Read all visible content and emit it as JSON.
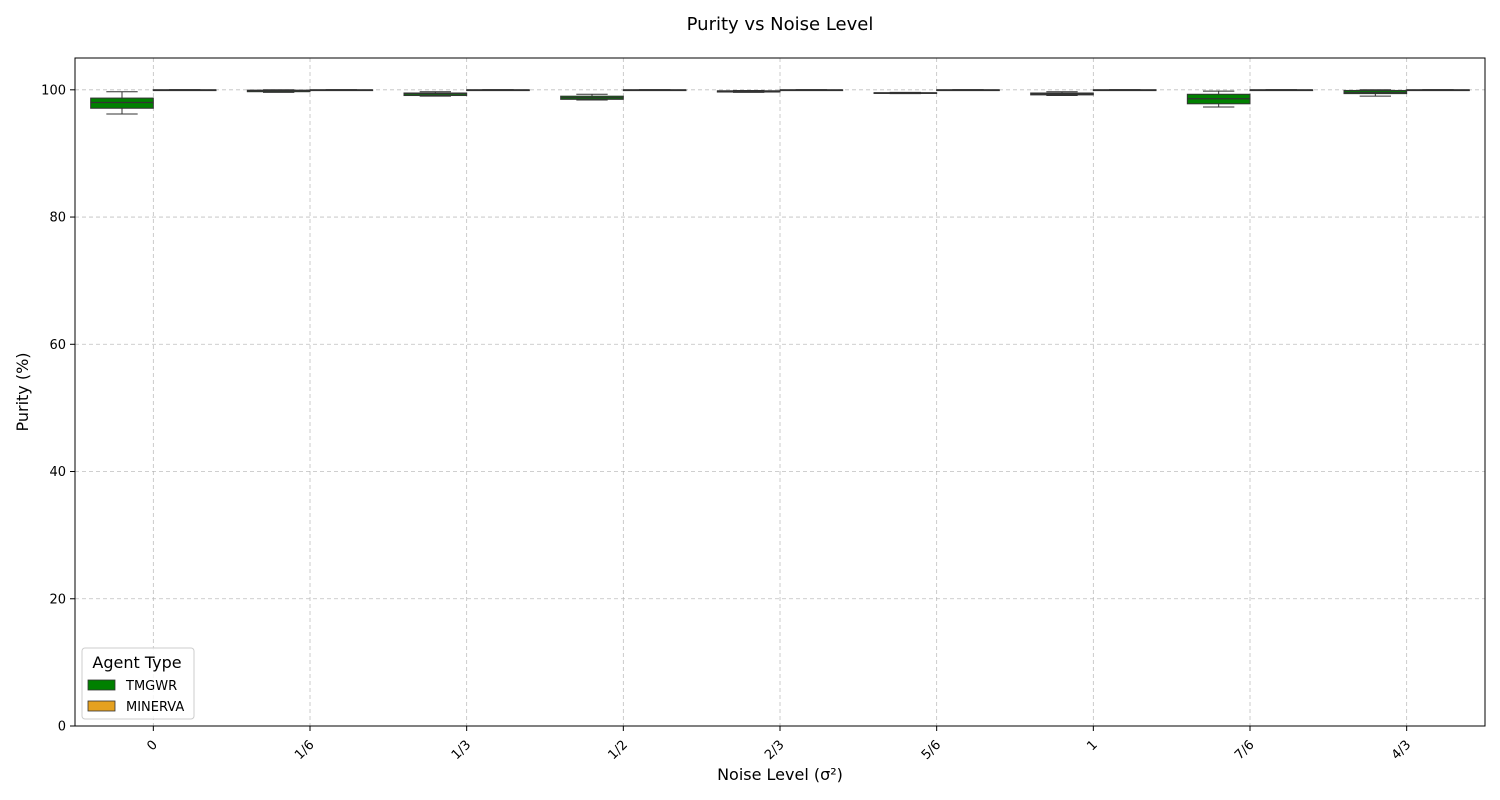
{
  "chart_data": {
    "type": "box",
    "title": "Purity vs Noise Level",
    "xlabel": "Noise Level (σ²)",
    "ylabel": "Purity (%)",
    "ylim": [
      0,
      105
    ],
    "yticks": [
      0,
      20,
      40,
      60,
      80,
      100
    ],
    "grid": true,
    "categories": [
      "0",
      "1/6",
      "1/3",
      "1/2",
      "2/3",
      "5/6",
      "1",
      "7/6",
      "4/3"
    ],
    "legend": {
      "title": "Agent Type",
      "placement": "lower-left"
    },
    "series": [
      {
        "name": "TMGWR",
        "color": "#008000",
        "boxes": [
          {
            "min": 96.2,
            "q1": 97.1,
            "median": 98.0,
            "q3": 98.7,
            "max": 99.7
          },
          {
            "min": 99.6,
            "q1": 99.7,
            "median": 99.85,
            "q3": 99.95,
            "max": 100.0
          },
          {
            "min": 99.0,
            "q1": 99.1,
            "median": 99.35,
            "q3": 99.5,
            "max": 99.7
          },
          {
            "min": 98.4,
            "q1": 98.5,
            "median": 98.75,
            "q3": 99.0,
            "max": 99.3
          },
          {
            "min": 99.6,
            "q1": 99.65,
            "median": 99.75,
            "q3": 99.85,
            "max": 99.9
          },
          {
            "min": 99.4,
            "q1": 99.45,
            "median": 99.5,
            "q3": 99.55,
            "max": 99.6
          },
          {
            "min": 99.1,
            "q1": 99.2,
            "median": 99.35,
            "q3": 99.5,
            "max": 99.7
          },
          {
            "min": 97.3,
            "q1": 97.8,
            "median": 98.6,
            "q3": 99.3,
            "max": 99.8
          },
          {
            "min": 99.0,
            "q1": 99.4,
            "median": 99.6,
            "q3": 99.9,
            "max": 100.0
          }
        ]
      },
      {
        "name": "MINERVA",
        "color": "#e5a11f",
        "boxes": [
          {
            "min": 100,
            "q1": 100,
            "median": 100,
            "q3": 100,
            "max": 100
          },
          {
            "min": 100,
            "q1": 100,
            "median": 100,
            "q3": 100,
            "max": 100
          },
          {
            "min": 100,
            "q1": 100,
            "median": 100,
            "q3": 100,
            "max": 100
          },
          {
            "min": 100,
            "q1": 100,
            "median": 100,
            "q3": 100,
            "max": 100
          },
          {
            "min": 100,
            "q1": 100,
            "median": 100,
            "q3": 100,
            "max": 100
          },
          {
            "min": 100,
            "q1": 100,
            "median": 100,
            "q3": 100,
            "max": 100
          },
          {
            "min": 100,
            "q1": 100,
            "median": 100,
            "q3": 100,
            "max": 100
          },
          {
            "min": 100,
            "q1": 100,
            "median": 100,
            "q3": 100,
            "max": 100
          },
          {
            "min": 100,
            "q1": 100,
            "median": 100,
            "q3": 100,
            "max": 100
          }
        ]
      }
    ]
  }
}
